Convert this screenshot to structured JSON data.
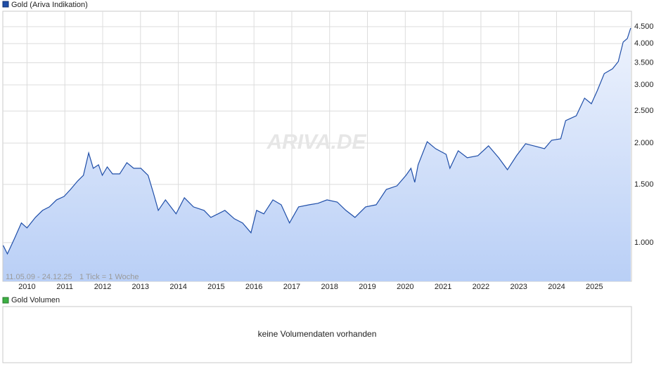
{
  "chart_data": {
    "type": "line",
    "title": "Gold (Ariva Indikation)",
    "date_range": "11.05.09 - 24.12.25",
    "tick_info": "1 Tick = 1 Woche",
    "watermark": "ARIVA.DE",
    "log_scale": true,
    "grid": true,
    "area": true,
    "xlim": [
      2009.36,
      2025.98
    ],
    "xticks": [
      2010,
      2011,
      2012,
      2013,
      2014,
      2015,
      2016,
      2017,
      2018,
      2019,
      2020,
      2021,
      2022,
      2023,
      2024,
      2025
    ],
    "ylim": [
      764,
      5010
    ],
    "yticks": [
      {
        "value": 1000,
        "label": "1.000"
      },
      {
        "value": 1500,
        "label": "1.500"
      },
      {
        "value": 2000,
        "label": "2.000"
      },
      {
        "value": 2500,
        "label": "2.500"
      },
      {
        "value": 3000,
        "label": "3.000"
      },
      {
        "value": 3500,
        "label": "3.500"
      },
      {
        "value": 4000,
        "label": "4.000"
      },
      {
        "value": 4500,
        "label": "4.500"
      }
    ],
    "x": [
      2009.37,
      2009.48,
      2009.67,
      2009.85,
      2010.0,
      2010.22,
      2010.41,
      2010.59,
      2010.78,
      2010.98,
      2011.15,
      2011.34,
      2011.49,
      2011.63,
      2011.75,
      2011.89,
      2011.99,
      2012.12,
      2012.26,
      2012.45,
      2012.64,
      2012.82,
      2013.01,
      2013.2,
      2013.34,
      2013.47,
      2013.66,
      2013.94,
      2014.16,
      2014.4,
      2014.68,
      2014.86,
      2015.05,
      2015.23,
      2015.48,
      2015.7,
      2015.92,
      2016.07,
      2016.26,
      2016.5,
      2016.72,
      2016.94,
      2017.18,
      2017.46,
      2017.69,
      2017.93,
      2018.2,
      2018.43,
      2018.67,
      2018.95,
      2019.23,
      2019.5,
      2019.78,
      2020.02,
      2020.15,
      2020.25,
      2020.34,
      2020.58,
      2020.8,
      2021.08,
      2021.18,
      2021.4,
      2021.64,
      2021.92,
      2022.2,
      2022.47,
      2022.7,
      2022.94,
      2023.18,
      2023.4,
      2023.68,
      2023.87,
      2024.11,
      2024.24,
      2024.52,
      2024.74,
      2024.92,
      2025.07,
      2025.26,
      2025.48,
      2025.63,
      2025.76,
      2025.87,
      2025.96
    ],
    "series": [
      {
        "name": "Gold (Ariva Indikation)",
        "color": "#1f4ea8",
        "values": [
          981,
          925,
          1030,
          1147,
          1108,
          1192,
          1252,
          1283,
          1347,
          1380,
          1449,
          1537,
          1598,
          1868,
          1678,
          1720,
          1598,
          1695,
          1614,
          1614,
          1745,
          1678,
          1678,
          1598,
          1414,
          1252,
          1347,
          1222,
          1367,
          1283,
          1252,
          1192,
          1222,
          1252,
          1181,
          1147,
          1071,
          1252,
          1222,
          1347,
          1302,
          1147,
          1283,
          1302,
          1315,
          1347,
          1327,
          1252,
          1192,
          1283,
          1302,
          1449,
          1485,
          1598,
          1678,
          1522,
          1720,
          2020,
          1924,
          1850,
          1678,
          1896,
          1806,
          1832,
          1962,
          1806,
          1662,
          1832,
          1991,
          1962,
          1924,
          2040,
          2060,
          2339,
          2420,
          2735,
          2630,
          2872,
          3245,
          3357,
          3526,
          4043,
          4142,
          4457
        ]
      }
    ]
  },
  "volume_panel": {
    "legend": "Gold Volumen",
    "color": "#3cb043",
    "message": "keine Volumendaten vorhanden"
  }
}
